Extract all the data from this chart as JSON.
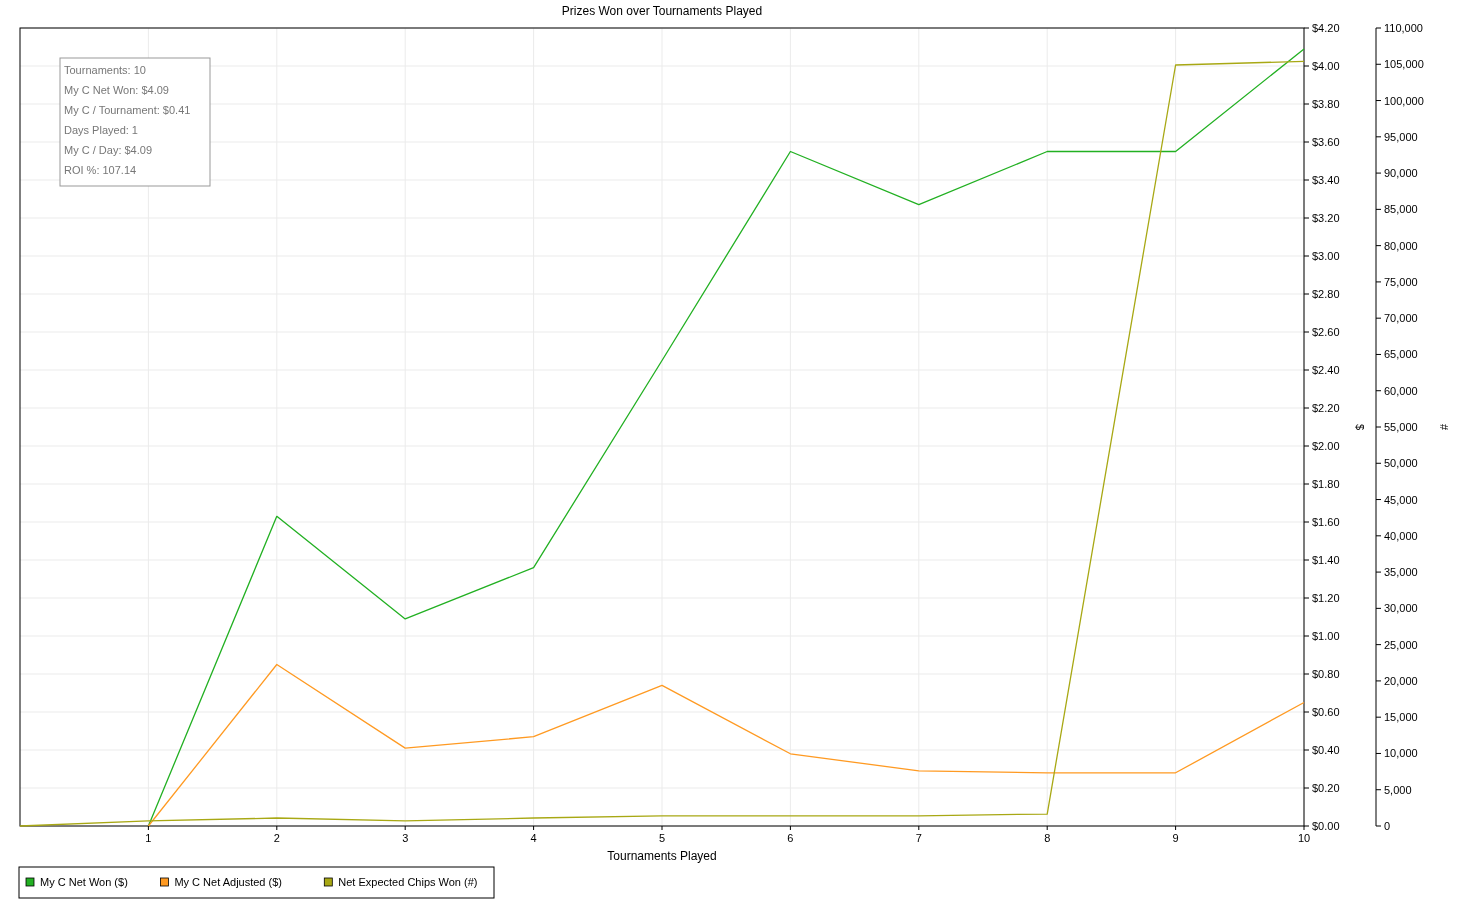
{
  "chart_data": {
    "type": "line",
    "title": "Prizes Won over Tournaments Played",
    "xlabel": "Tournaments Played",
    "ylabel": "$",
    "y2label": "#",
    "x": [
      0,
      1,
      2,
      3,
      4,
      5,
      6,
      7,
      8,
      9,
      10
    ],
    "xlim": [
      0,
      10
    ],
    "xticks": [
      1,
      2,
      3,
      4,
      5,
      6,
      7,
      8,
      9,
      10
    ],
    "ylim": [
      0,
      4.2
    ],
    "yticks": [
      {
        "value": 0,
        "label": "$0.00"
      },
      {
        "value": 0.2,
        "label": "$0.20"
      },
      {
        "value": 0.4,
        "label": "$0.40"
      },
      {
        "value": 0.6,
        "label": "$0.60"
      },
      {
        "value": 0.8,
        "label": "$0.80"
      },
      {
        "value": 1,
        "label": "$1.00"
      },
      {
        "value": 1.2,
        "label": "$1.20"
      },
      {
        "value": 1.4,
        "label": "$1.40"
      },
      {
        "value": 1.6,
        "label": "$1.60"
      },
      {
        "value": 1.8,
        "label": "$1.80"
      },
      {
        "value": 2,
        "label": "$2.00"
      },
      {
        "value": 2.2,
        "label": "$2.20"
      },
      {
        "value": 2.4,
        "label": "$2.40"
      },
      {
        "value": 2.6,
        "label": "$2.60"
      },
      {
        "value": 2.8,
        "label": "$2.80"
      },
      {
        "value": 3,
        "label": "$3.00"
      },
      {
        "value": 3.2,
        "label": "$3.20"
      },
      {
        "value": 3.4,
        "label": "$3.40"
      },
      {
        "value": 3.6,
        "label": "$3.60"
      },
      {
        "value": 3.8,
        "label": "$3.80"
      },
      {
        "value": 4,
        "label": "$4.00"
      },
      {
        "value": 4.2,
        "label": "$4.20"
      }
    ],
    "y2lim": [
      0,
      110000
    ],
    "y2ticks": [
      0,
      {
        "value": 5000,
        "label": "5,000"
      },
      {
        "value": 10000,
        "label": "10,000"
      },
      {
        "value": 15000,
        "label": "15,000"
      },
      {
        "value": 20000,
        "label": "20,000"
      },
      {
        "value": 25000,
        "label": "25,000"
      },
      {
        "value": 30000,
        "label": "30,000"
      },
      {
        "value": 35000,
        "label": "35,000"
      },
      {
        "value": 40000,
        "label": "40,000"
      },
      {
        "value": 45000,
        "label": "45,000"
      },
      {
        "value": 50000,
        "label": "50,000"
      },
      {
        "value": 55000,
        "label": "55,000"
      },
      {
        "value": 60000,
        "label": "60,000"
      },
      {
        "value": 65000,
        "label": "65,000"
      },
      {
        "value": 70000,
        "label": "70,000"
      },
      {
        "value": 75000,
        "label": "75,000"
      },
      {
        "value": 80000,
        "label": "80,000"
      },
      {
        "value": 85000,
        "label": "85,000"
      },
      {
        "value": 90000,
        "label": "90,000"
      },
      {
        "value": 95000,
        "label": "95,000"
      },
      {
        "value": 100000,
        "label": "100,000"
      },
      {
        "value": 105000,
        "label": "105,000"
      },
      {
        "value": 110000,
        "label": "110,000"
      }
    ],
    "grid": true,
    "legend": "bottom",
    "marker": "none",
    "line_style": "solid",
    "annotations": [
      "Tournaments: 10",
      "My C Net Won: $4.09",
      "My C / Tournament: $0.41",
      "Days Played: 1",
      "My C / Day: $4.09",
      "ROI %: 107.14"
    ],
    "series": [
      {
        "name": "My C Net Won ($)",
        "color": "#22b022",
        "values": [
          null,
          0,
          1.63,
          1.09,
          1.36,
          2.45,
          3.55,
          3.27,
          3.55,
          3.55,
          4.09
        ]
      },
      {
        "name": "My C Net Adjusted ($)",
        "color": "#ff9a22",
        "values": [
          null,
          0,
          0.85,
          0.41,
          0.47,
          0.74,
          0.38,
          0.29,
          0.28,
          0.28,
          0.65
        ]
      },
      {
        "name": "Net Expected Chips Won (#)",
        "color": "#a8a814",
        "axis": "y2",
        "values": [
          0,
          700,
          1100,
          700,
          1100,
          1400,
          1400,
          1400,
          1650,
          104900,
          105400
        ]
      }
    ]
  }
}
